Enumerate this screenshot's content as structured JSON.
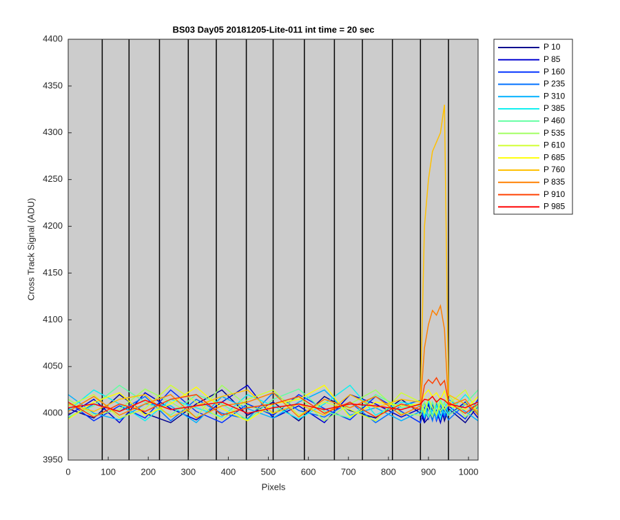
{
  "chart_data": {
    "type": "line",
    "title": "BS03 Day05 20181205-Lite-011 int time = 20 sec",
    "xlabel": "Pixels",
    "ylabel": "Cross Track Signal (ADU)",
    "xlim": [
      0,
      1024
    ],
    "ylim": [
      3950,
      4400
    ],
    "xticks": [
      0,
      100,
      200,
      300,
      400,
      500,
      600,
      700,
      800,
      900,
      1000
    ],
    "yticks": [
      3950,
      4000,
      4050,
      4100,
      4150,
      4200,
      4250,
      4300,
      4350,
      4400
    ],
    "vlines": [
      85,
      152,
      228,
      300,
      370,
      445,
      512,
      590,
      665,
      735,
      810,
      880,
      950
    ],
    "x": [
      0,
      64,
      128,
      192,
      256,
      320,
      384,
      448,
      512,
      576,
      640,
      704,
      768,
      832,
      880,
      890,
      900,
      910,
      920,
      930,
      940,
      950,
      992,
      1024
    ],
    "series": [
      {
        "name": "P 10",
        "color": "#00008f",
        "values": [
          4005,
          3995,
          4020,
          4000,
          3990,
          4010,
          4025,
          3998,
          4012,
          3992,
          4018,
          4003,
          3995,
          4015,
          4000,
          3990,
          3995,
          4005,
          3998,
          4010,
          3992,
          4005,
          3990,
          4008
        ]
      },
      {
        "name": "P 85",
        "color": "#0000d0",
        "values": [
          3998,
          4015,
          3990,
          4022,
          4005,
          3993,
          4012,
          4030,
          3995,
          4008,
          3990,
          4020,
          4010,
          3996,
          4005,
          3992,
          4010,
          3995,
          4003,
          3990,
          4006,
          3998,
          4012,
          3995
        ]
      },
      {
        "name": "P 160",
        "color": "#0030ff",
        "values": [
          4012,
          3992,
          4008,
          3995,
          4025,
          4002,
          3990,
          4010,
          3998,
          4020,
          4005,
          3993,
          4018,
          4002,
          3990,
          4006,
          3994,
          4010,
          3992,
          4004,
          3996,
          4008,
          3994,
          4015
        ]
      },
      {
        "name": "P 235",
        "color": "#0070ff",
        "values": [
          3995,
          4010,
          4002,
          4018,
          3992,
          4015,
          4000,
          3994,
          4022,
          4003,
          3996,
          4012,
          3990,
          4008,
          4014,
          3995,
          4005,
          3992,
          4010,
          3998,
          4003,
          3993,
          4010,
          4000
        ]
      },
      {
        "name": "P 310",
        "color": "#00b0ff",
        "values": [
          4020,
          4000,
          3993,
          4010,
          4008,
          3990,
          4018,
          4005,
          3995,
          4012,
          4025,
          3998,
          4006,
          3992,
          4002,
          4012,
          3996,
          4004,
          3994,
          4010,
          3998,
          4015,
          4002,
          3992
        ]
      },
      {
        "name": "P 385",
        "color": "#10f0f0",
        "values": [
          4003,
          4025,
          4010,
          3992,
          4015,
          4006,
          3996,
          4020,
          4008,
          3994,
          4010,
          4030,
          3998,
          4012,
          4008,
          3996,
          4014,
          3998,
          4008,
          3994,
          4012,
          4000,
          4020,
          4005
        ]
      },
      {
        "name": "P 460",
        "color": "#60ffa0",
        "values": [
          3996,
          4008,
          4030,
          4012,
          3998,
          4020,
          4010,
          3993,
          4015,
          4026,
          4002,
          3995,
          4020,
          4006,
          4010,
          4004,
          3996,
          4012,
          4000,
          4015,
          4004,
          3998,
          4010,
          4025
        ]
      },
      {
        "name": "P 535",
        "color": "#a0ff60",
        "values": [
          4015,
          3998,
          4004,
          4026,
          4012,
          3996,
          4030,
          4008,
          4000,
          4018,
          3992,
          4010,
          4025,
          4000,
          3998,
          4012,
          4005,
          3996,
          4014,
          4002,
          4010,
          4020,
          3996,
          4008
        ]
      },
      {
        "name": "P 610",
        "color": "#d0ff30",
        "values": [
          4008,
          4020,
          3995,
          4005,
          4030,
          4012,
          3993,
          4015,
          4025,
          3998,
          4012,
          4004,
          3992,
          4022,
          4012,
          4000,
          4016,
          4006,
          3998,
          4012,
          4004,
          4010,
          4025,
          4000
        ]
      },
      {
        "name": "P 685",
        "color": "#ffff00",
        "values": [
          3994,
          4012,
          4022,
          3998,
          4010,
          4028,
          4005,
          3992,
          4010,
          4015,
          4030,
          3996,
          4012,
          4008,
          4010,
          4020,
          4025,
          4018,
          4022,
          4015,
          4024,
          4008,
          4004,
          4018
        ]
      },
      {
        "name": "P 760",
        "color": "#ffc000",
        "values": [
          4010,
          4002,
          4015,
          4020,
          3996,
          4008,
          4018,
          4025,
          4000,
          4010,
          3998,
          4020,
          4006,
          4015,
          4012,
          4200,
          4250,
          4280,
          4290,
          4300,
          4330,
          4020,
          4010,
          4002
        ]
      },
      {
        "name": "P 835",
        "color": "#ff8000",
        "values": [
          4002,
          4018,
          3998,
          4010,
          4020,
          3995,
          4008,
          4012,
          4022,
          3996,
          4015,
          4006,
          4018,
          3998,
          4008,
          4070,
          4095,
          4110,
          4105,
          4115,
          4090,
          4008,
          4015,
          3998
        ]
      },
      {
        "name": "P 910",
        "color": "#ff4000",
        "values": [
          4012,
          3996,
          4010,
          4002,
          4015,
          4020,
          3998,
          4006,
          4010,
          4018,
          4000,
          4012,
          3996,
          4010,
          4004,
          4030,
          4036,
          4032,
          4038,
          4030,
          4035,
          4012,
          4000,
          4010
        ]
      },
      {
        "name": "P 985",
        "color": "#ff0000",
        "values": [
          4006,
          4010,
          4002,
          4014,
          4004,
          4008,
          4012,
          4000,
          4006,
          4010,
          4004,
          4010,
          4008,
          4004,
          4010,
          4015,
          4014,
          4018,
          4012,
          4016,
          4014,
          4010,
          4006,
          4012
        ]
      }
    ]
  }
}
